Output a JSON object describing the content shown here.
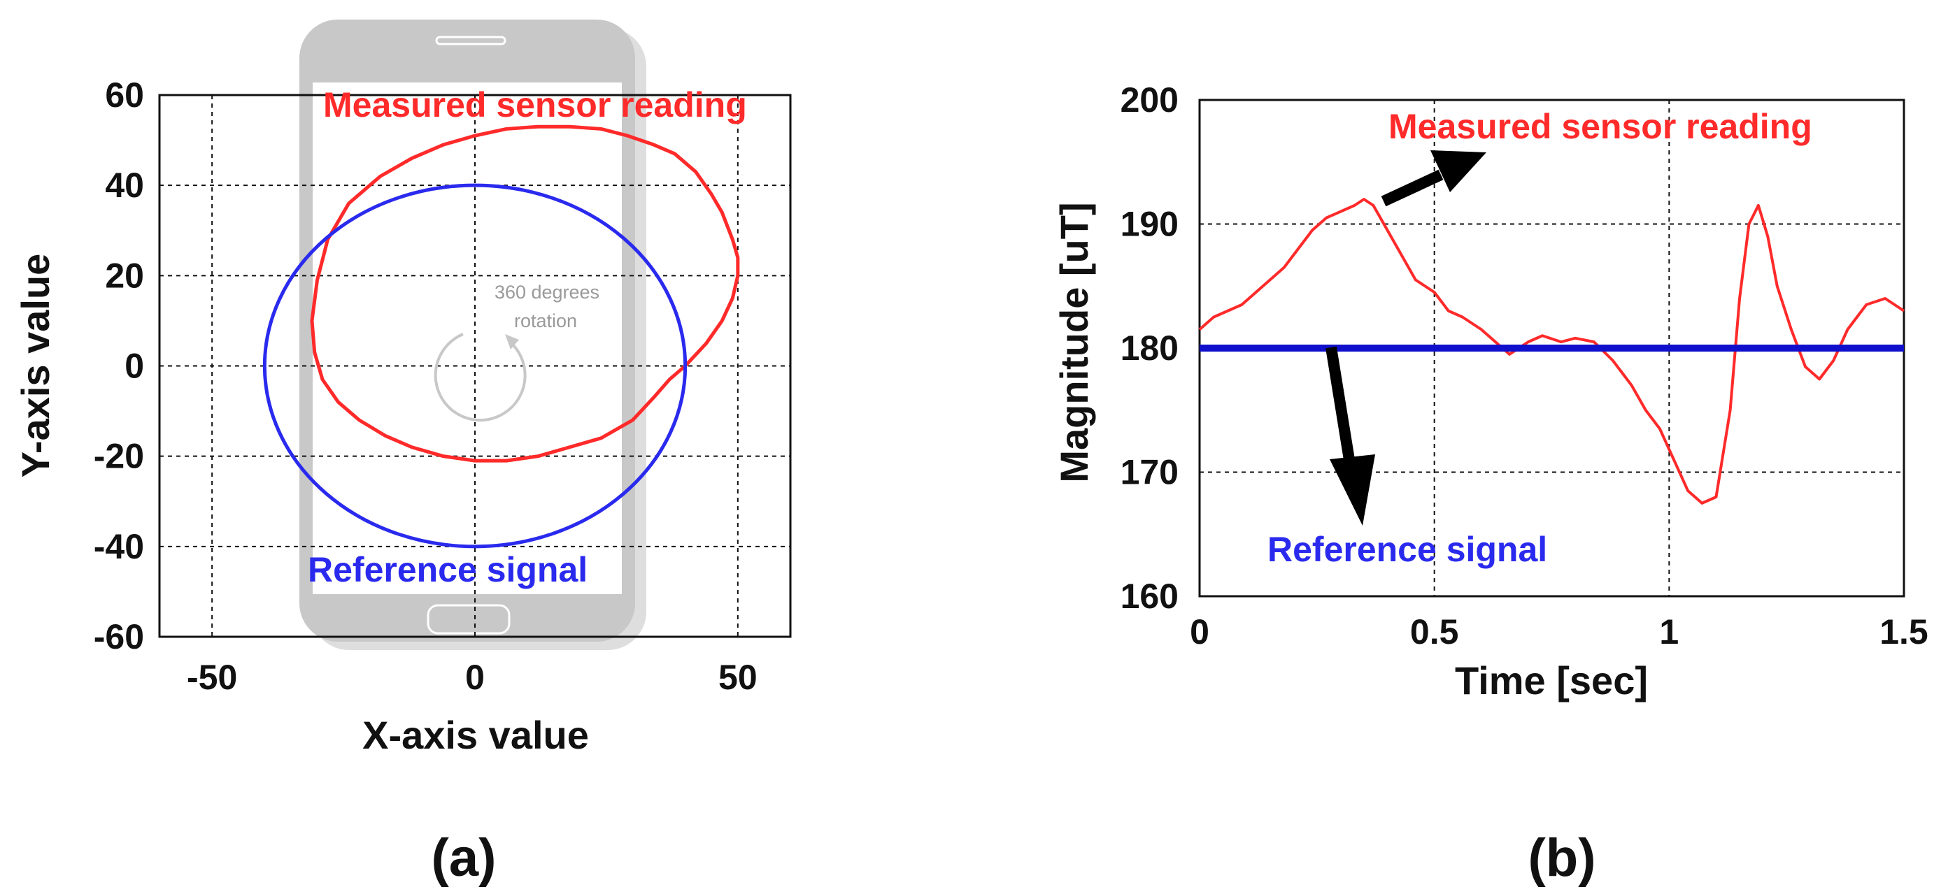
{
  "chart_data": [
    {
      "type": "line",
      "panel_label": "(a)",
      "xlabel": "X-axis value",
      "ylabel": "Y-axis value",
      "xlim": [
        -60,
        60
      ],
      "ylim": [
        -60,
        60
      ],
      "xticks": [
        -50,
        0,
        50
      ],
      "yticks": [
        60,
        40,
        20,
        0,
        -20,
        -40,
        -60
      ],
      "grid": true,
      "colors": {
        "measured": "#ff2a2a",
        "reference": "#2a2aee"
      },
      "annotations": {
        "measured": "Measured sensor reading",
        "reference": "Reference signal",
        "rotation_line1": "360 degrees",
        "rotation_line2": "rotation"
      },
      "series": [
        {
          "key": "measured",
          "x": [
            40,
            44,
            47,
            49,
            50,
            50,
            49,
            47,
            45,
            42,
            38,
            34,
            29,
            24,
            18,
            12,
            6,
            0,
            -6,
            -12,
            -18,
            -24,
            -28,
            -30,
            -31,
            -30.5,
            -29,
            -26,
            -22,
            -17,
            -12,
            -6,
            0,
            6,
            12,
            18,
            24,
            30,
            34,
            37,
            40
          ],
          "y": [
            0,
            5,
            10,
            15,
            20,
            24,
            28,
            34,
            38,
            43,
            47,
            49,
            51,
            52.5,
            53,
            53,
            52.5,
            51,
            49,
            46,
            42,
            36,
            28,
            19,
            10,
            3,
            -3,
            -8,
            -12,
            -15.5,
            -18,
            -20,
            -21,
            -21,
            -20,
            -18,
            -16,
            -12,
            -7,
            -3,
            0
          ]
        },
        {
          "key": "reference",
          "shape": "circle",
          "center": [
            0,
            0
          ],
          "radius": 40
        }
      ]
    },
    {
      "type": "line",
      "panel_label": "(b)",
      "xlabel": "Time [sec]",
      "ylabel": "Magnitude [uT]",
      "xlim": [
        0,
        1.5
      ],
      "ylim": [
        160,
        200
      ],
      "xticks": [
        0,
        0.5,
        1,
        1.5
      ],
      "xtick_labels": [
        "0",
        "0.5",
        "1",
        "1.5"
      ],
      "yticks": [
        200,
        190,
        180,
        170,
        160
      ],
      "grid": true,
      "colors": {
        "measured": "#ff2a2a",
        "reference": "#1010cc"
      },
      "annotations": {
        "measured": "Measured sensor reading",
        "reference": "Reference signal"
      },
      "series": [
        {
          "key": "measured",
          "x": [
            0,
            0.03,
            0.06,
            0.09,
            0.12,
            0.15,
            0.18,
            0.21,
            0.24,
            0.27,
            0.3,
            0.33,
            0.35,
            0.37,
            0.4,
            0.43,
            0.46,
            0.5,
            0.53,
            0.56,
            0.6,
            0.63,
            0.66,
            0.7,
            0.73,
            0.77,
            0.8,
            0.84,
            0.88,
            0.92,
            0.95,
            0.98,
            1.01,
            1.04,
            1.07,
            1.1,
            1.13,
            1.15,
            1.17,
            1.19,
            1.21,
            1.23,
            1.26,
            1.29,
            1.32,
            1.35,
            1.38,
            1.42,
            1.46,
            1.5
          ],
          "y": [
            181.5,
            182.5,
            183,
            183.5,
            184.5,
            185.5,
            186.5,
            188,
            189.5,
            190.5,
            191,
            191.5,
            192,
            191.5,
            189.5,
            187.5,
            185.5,
            184.5,
            183,
            182.5,
            181.5,
            180.5,
            179.5,
            180.5,
            181,
            180.5,
            180.8,
            180.5,
            179,
            177,
            175,
            173.5,
            171,
            168.5,
            167.5,
            168,
            175,
            184,
            190,
            191.5,
            189,
            185,
            181.5,
            178.5,
            177.5,
            179,
            181.5,
            183.5,
            184,
            183
          ]
        },
        {
          "key": "reference",
          "x": [
            0,
            1.5
          ],
          "y": [
            180,
            180
          ]
        }
      ]
    }
  ]
}
